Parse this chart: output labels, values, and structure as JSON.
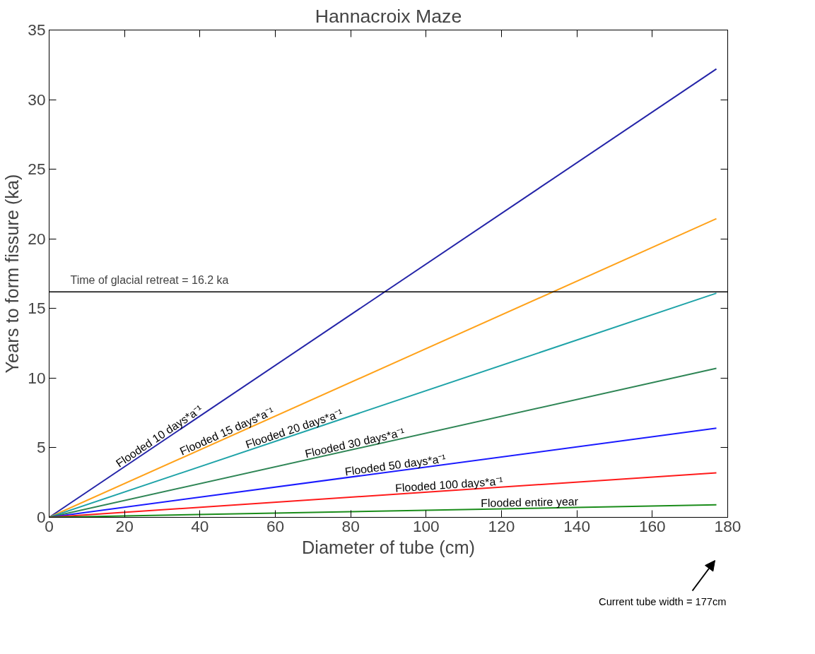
{
  "chart_data": {
    "type": "line",
    "title": "Hannacroix Maze",
    "xlabel": "Diameter of tube (cm)",
    "ylabel": "Years to form fissure (ka)",
    "x": [
      0,
      177
    ],
    "series": [
      {
        "name": "Flooded 10 days*a⁻¹",
        "color": "#2424a8",
        "values": [
          0,
          32.2
        ]
      },
      {
        "name": "Flooded 15 days*a⁻¹",
        "color": "#ffa21a",
        "values": [
          0,
          21.45
        ]
      },
      {
        "name": "Flooded 20 days*a⁻¹",
        "color": "#1fa3a8",
        "values": [
          0,
          16.1
        ]
      },
      {
        "name": "Flooded 30 days*a⁻¹",
        "color": "#2e8555",
        "values": [
          0,
          10.7
        ]
      },
      {
        "name": "Flooded 50 days*a⁻¹",
        "color": "#1a1aff",
        "values": [
          0,
          6.4
        ]
      },
      {
        "name": "Flooded 100 days*a⁻¹",
        "color": "#ff1a1a",
        "values": [
          0,
          3.2
        ]
      },
      {
        "name": "Flooded entire year",
        "color": "#1a8c1a",
        "values": [
          0,
          0.9
        ]
      }
    ],
    "xlim": [
      0,
      180
    ],
    "xticks": [
      0,
      20,
      40,
      60,
      80,
      100,
      120,
      140,
      160,
      180
    ],
    "ylim": [
      0,
      35
    ],
    "yticks": [
      0,
      5,
      10,
      15,
      20,
      25,
      30,
      35
    ],
    "ref_lines": [
      {
        "axis": "y",
        "value": 16.2,
        "label": "Time of glacial retreat = 16.2 ka",
        "color": "#000000"
      }
    ],
    "annotations": [
      "Current tube width = 177cm"
    ],
    "grid": false,
    "marker": "none",
    "line_style": "solid"
  }
}
